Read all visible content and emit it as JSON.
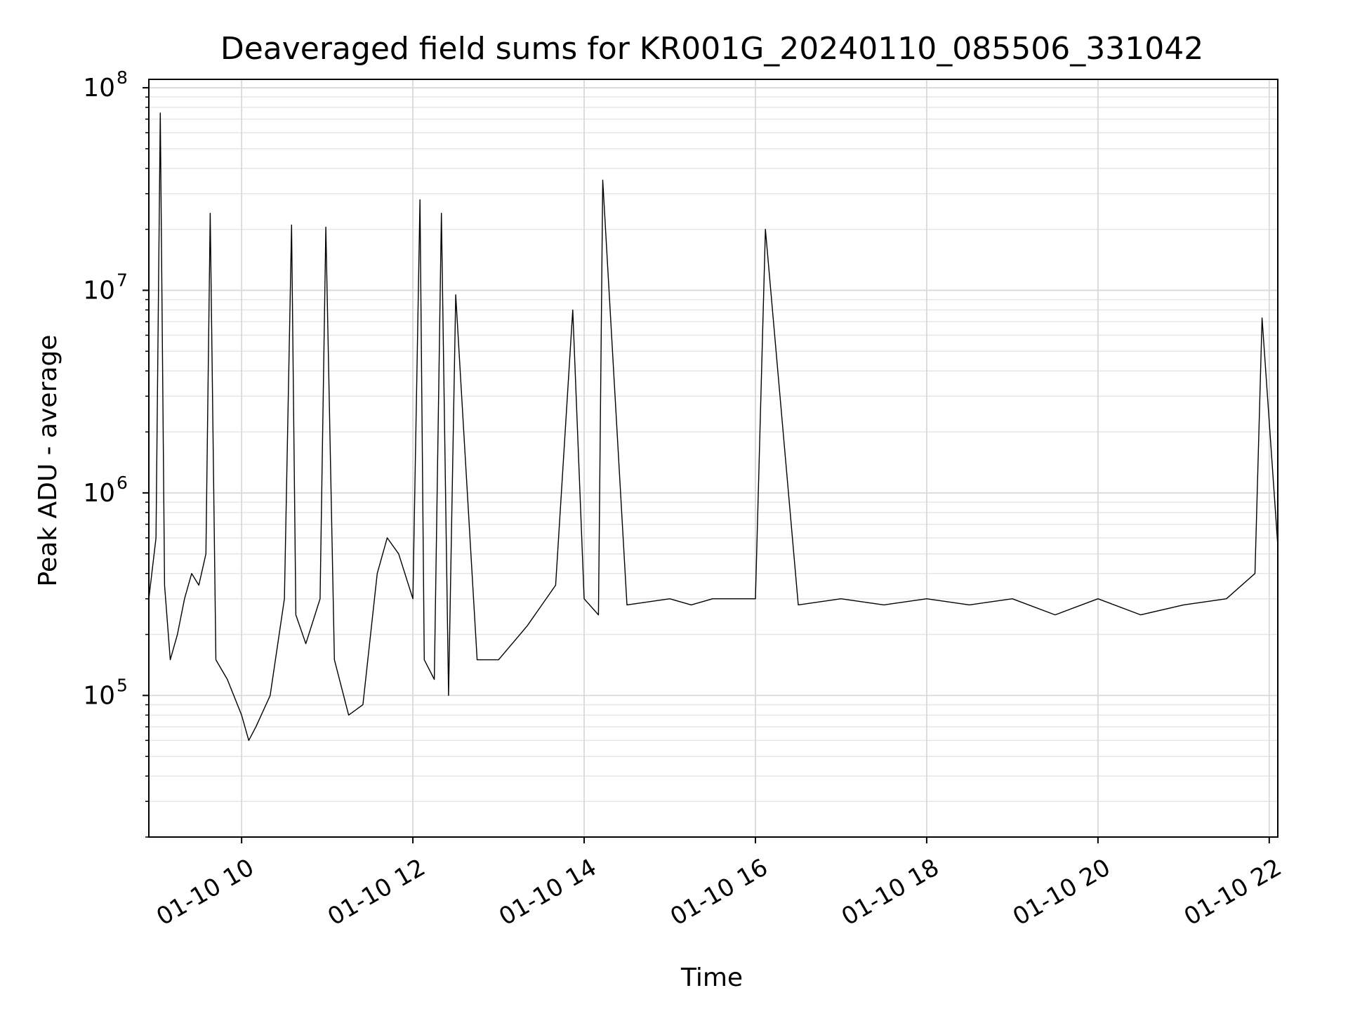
{
  "chart_data": {
    "type": "line",
    "title": "Deaveraged field sums for KR001G_20240110_085506_331042",
    "xlabel": "Time",
    "ylabel": "Peak ADU - average",
    "yscale": "log",
    "ylim": [
      20000,
      110000000
    ],
    "xlim": [
      "2024-01-10 08:55",
      "2024-01-10 22:06"
    ],
    "grid": true,
    "line_color": "#000000",
    "x_ticks": [
      {
        "value": "2024-01-10 10:00",
        "label": "01-10 10"
      },
      {
        "value": "2024-01-10 12:00",
        "label": "01-10 12"
      },
      {
        "value": "2024-01-10 14:00",
        "label": "01-10 14"
      },
      {
        "value": "2024-01-10 16:00",
        "label": "01-10 16"
      },
      {
        "value": "2024-01-10 18:00",
        "label": "01-10 18"
      },
      {
        "value": "2024-01-10 20:00",
        "label": "01-10 20"
      },
      {
        "value": "2024-01-10 22:00",
        "label": "01-10 22"
      }
    ],
    "y_ticks": [
      {
        "value": 100000,
        "base": "10",
        "exp": "5"
      },
      {
        "value": 1000000,
        "base": "10",
        "exp": "6"
      },
      {
        "value": 10000000,
        "base": "10",
        "exp": "7"
      },
      {
        "value": 100000000,
        "base": "10",
        "exp": "8"
      }
    ],
    "series": [
      {
        "x": [
          "2024-01-10 08:55",
          "2024-01-10 09:00",
          "2024-01-10 09:03",
          "2024-01-10 09:06",
          "2024-01-10 09:10",
          "2024-01-10 09:15",
          "2024-01-10 09:20",
          "2024-01-10 09:25",
          "2024-01-10 09:30",
          "2024-01-10 09:35",
          "2024-01-10 09:38",
          "2024-01-10 09:42",
          "2024-01-10 09:50",
          "2024-01-10 10:00",
          "2024-01-10 10:05",
          "2024-01-10 10:10",
          "2024-01-10 10:20",
          "2024-01-10 10:30",
          "2024-01-10 10:35",
          "2024-01-10 10:38",
          "2024-01-10 10:45",
          "2024-01-10 10:55",
          "2024-01-10 10:59",
          "2024-01-10 11:05",
          "2024-01-10 11:15",
          "2024-01-10 11:25",
          "2024-01-10 11:35",
          "2024-01-10 11:42",
          "2024-01-10 11:50",
          "2024-01-10 12:00",
          "2024-01-10 12:05",
          "2024-01-10 12:08",
          "2024-01-10 12:15",
          "2024-01-10 12:20",
          "2024-01-10 12:25",
          "2024-01-10 12:30",
          "2024-01-10 12:45",
          "2024-01-10 13:00",
          "2024-01-10 13:20",
          "2024-01-10 13:40",
          "2024-01-10 13:52",
          "2024-01-10 14:00",
          "2024-01-10 14:10",
          "2024-01-10 14:13",
          "2024-01-10 14:30",
          "2024-01-10 15:00",
          "2024-01-10 15:15",
          "2024-01-10 15:30",
          "2024-01-10 16:00",
          "2024-01-10 16:07",
          "2024-01-10 16:30",
          "2024-01-10 17:00",
          "2024-01-10 17:30",
          "2024-01-10 18:00",
          "2024-01-10 18:30",
          "2024-01-10 19:00",
          "2024-01-10 19:30",
          "2024-01-10 20:00",
          "2024-01-10 20:30",
          "2024-01-10 21:00",
          "2024-01-10 21:30",
          "2024-01-10 21:50",
          "2024-01-10 21:55",
          "2024-01-10 22:06"
        ],
        "y": [
          300000,
          600000,
          75000000,
          350000,
          150000,
          200000,
          300000,
          400000,
          350000,
          500000,
          24000000,
          150000,
          120000,
          80000,
          60000,
          70000,
          100000,
          300000,
          21000000,
          250000,
          180000,
          300000,
          20500000,
          150000,
          80000,
          90000,
          400000,
          600000,
          500000,
          300000,
          28000000,
          150000,
          120000,
          24000000,
          100000,
          9500000,
          150000,
          150000,
          220000,
          350000,
          8000000,
          300000,
          250000,
          35000000,
          280000,
          300000,
          280000,
          300000,
          300000,
          20000000,
          280000,
          300000,
          280000,
          300000,
          280000,
          300000,
          250000,
          300000,
          250000,
          280000,
          300000,
          400000,
          7300000,
          550000
        ]
      }
    ]
  }
}
